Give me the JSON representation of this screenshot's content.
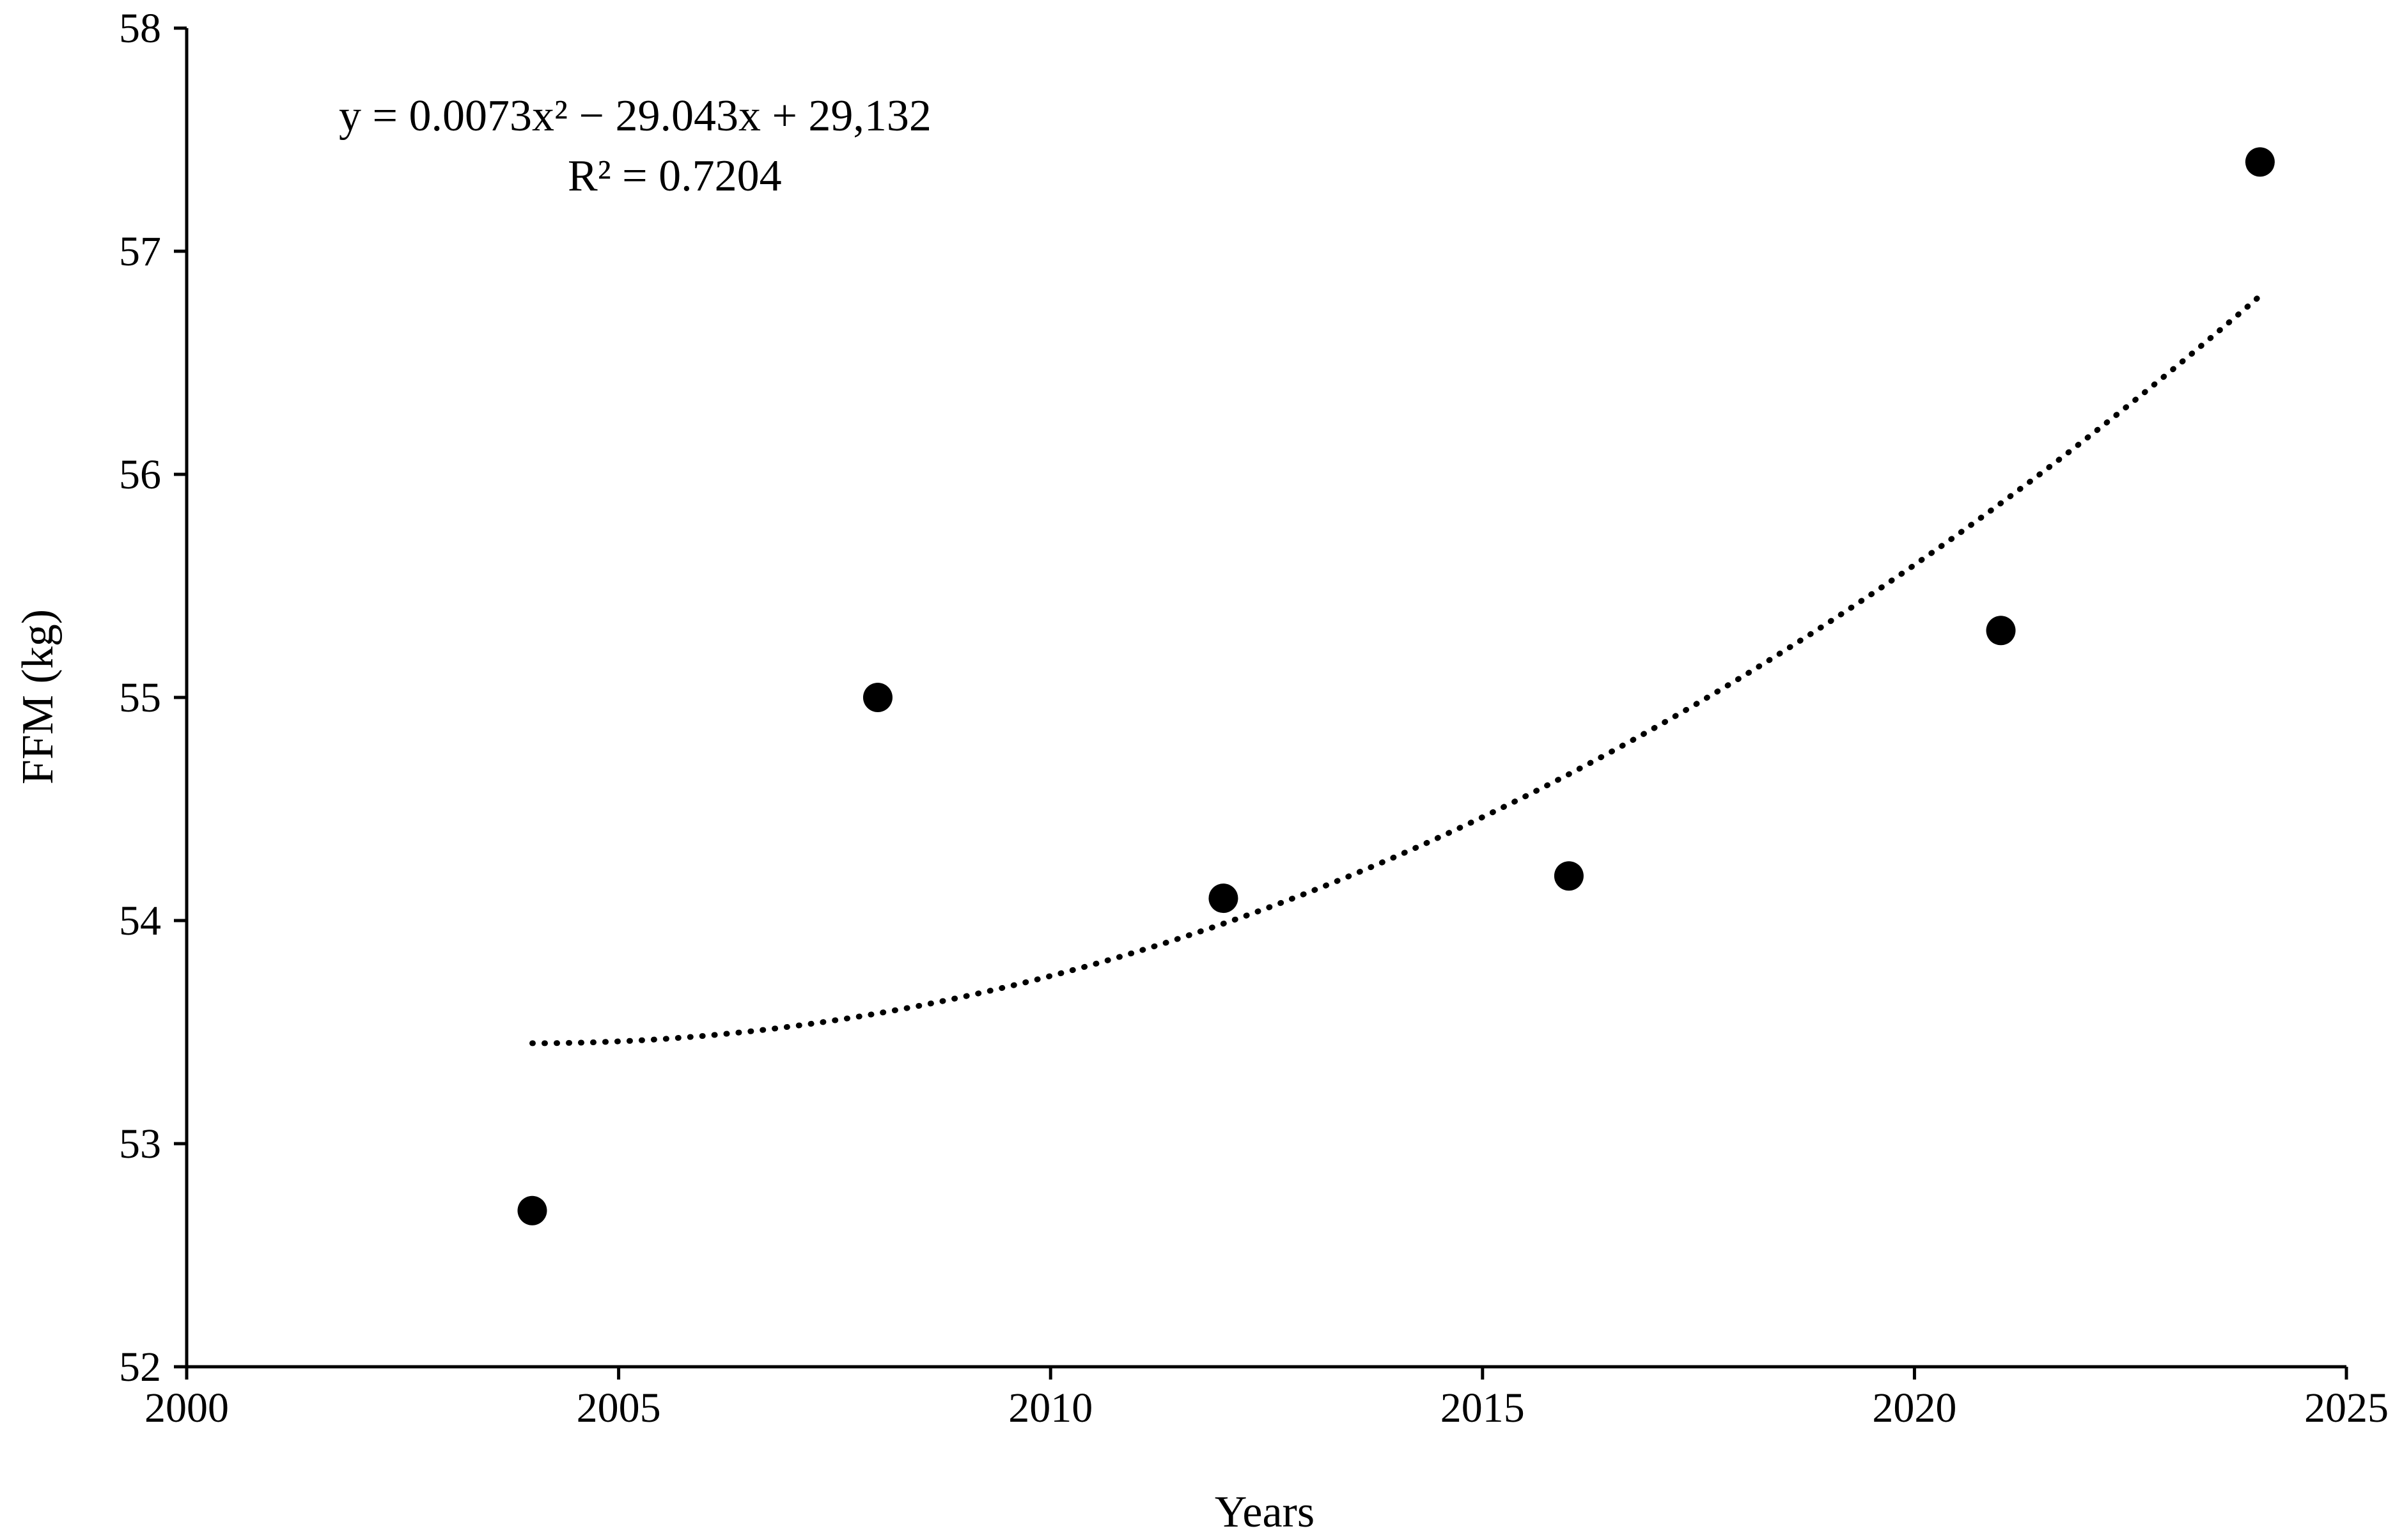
{
  "chart_data": {
    "type": "scatter",
    "xlabel": "Years",
    "ylabel": "FFM (kg)",
    "xlim": [
      2000,
      2025
    ],
    "ylim": [
      52,
      58
    ],
    "x_ticks": [
      "2000",
      "2005",
      "2010",
      "2015",
      "2020",
      "2025"
    ],
    "y_ticks": [
      "52",
      "53",
      "54",
      "55",
      "56",
      "57",
      "58"
    ],
    "grid": false,
    "series": [
      {
        "x": [
          2004,
          2008,
          2012,
          2016,
          2021,
          2024
        ],
        "y": [
          52.7,
          55.0,
          54.1,
          54.2,
          55.3,
          57.4
        ]
      }
    ],
    "trendline": {
      "type": "polynomial-2",
      "style": "dotted",
      "x_start": 2004,
      "x_end": 2024,
      "y_start": 53.45,
      "y_end": 56.8
    },
    "annotations": {
      "equation": "y = 0.0073x² − 29.043x + 29,132",
      "r_squared": "R² = 0.7204"
    },
    "colors": {
      "marker": "#000000",
      "axis": "#000000",
      "trendline": "#000000"
    }
  }
}
